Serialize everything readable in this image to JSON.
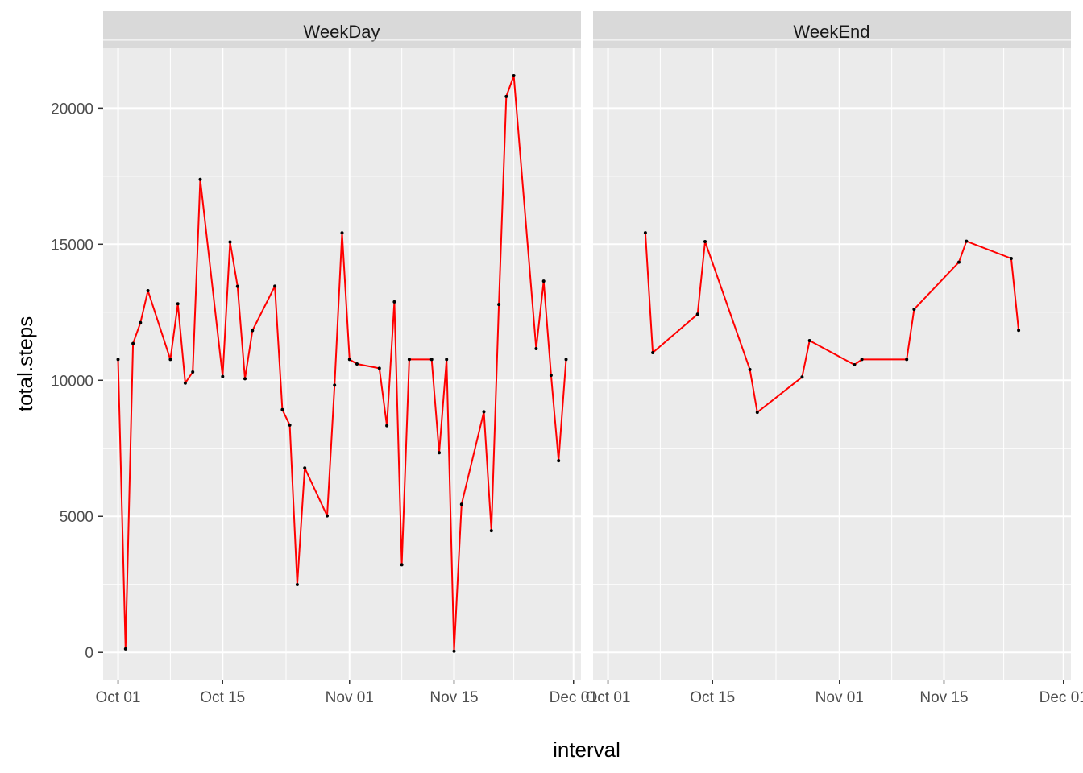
{
  "chart_data": {
    "type": "line",
    "xlabel": "interval",
    "ylabel": "total.steps",
    "x_ticks": [
      "Oct 01",
      "Oct 15",
      "Nov 01",
      "Nov 15",
      "Dec 01"
    ],
    "y_ticks": [
      "0",
      "5000",
      "10000",
      "15000",
      "20000"
    ],
    "ylim": [
      -1000,
      22200
    ],
    "grid": true,
    "line_color": "#ff0000",
    "point_color": "#000000",
    "panel_bg": "#ebebeb",
    "strip_bg": "#d9d9d9",
    "panels": [
      {
        "label": "WeekDay",
        "x": [
          "2012-10-01",
          "2012-10-02",
          "2012-10-03",
          "2012-10-04",
          "2012-10-05",
          "2012-10-08",
          "2012-10-09",
          "2012-10-10",
          "2012-10-11",
          "2012-10-12",
          "2012-10-15",
          "2012-10-16",
          "2012-10-17",
          "2012-10-18",
          "2012-10-19",
          "2012-10-22",
          "2012-10-23",
          "2012-10-24",
          "2012-10-25",
          "2012-10-26",
          "2012-10-29",
          "2012-10-30",
          "2012-10-31",
          "2012-11-01",
          "2012-11-02",
          "2012-11-05",
          "2012-11-06",
          "2012-11-07",
          "2012-11-08",
          "2012-11-09",
          "2012-11-12",
          "2012-11-13",
          "2012-11-14",
          "2012-11-15",
          "2012-11-16",
          "2012-11-19",
          "2012-11-20",
          "2012-11-21",
          "2012-11-22",
          "2012-11-23",
          "2012-11-26",
          "2012-11-27",
          "2012-11-28",
          "2012-11-29",
          "2012-11-30"
        ],
        "y": [
          10766,
          126,
          11352,
          12116,
          13294,
          10766,
          12811,
          9900,
          10304,
          17382,
          10139,
          15084,
          13452,
          10056,
          11829,
          13460,
          8918,
          8355,
          2492,
          6778,
          5018,
          9819,
          15414,
          10766,
          10600,
          10439,
          8334,
          12883,
          3219,
          10766,
          10765,
          7336,
          10766,
          41,
          5441,
          8841,
          4472,
          12787,
          20427,
          21194,
          11162,
          13646,
          10183,
          7047,
          10766
        ]
      },
      {
        "label": "WeekEnd",
        "x": [
          "2012-10-06",
          "2012-10-07",
          "2012-10-13",
          "2012-10-14",
          "2012-10-20",
          "2012-10-21",
          "2012-10-27",
          "2012-10-28",
          "2012-11-03",
          "2012-11-04",
          "2012-11-10",
          "2012-11-11",
          "2012-11-17",
          "2012-11-18",
          "2012-11-24",
          "2012-11-25"
        ],
        "y": [
          15420,
          11015,
          12426,
          15098,
          10395,
          8821,
          10119,
          11458,
          10571,
          10766,
          10766,
          12608,
          14339,
          15110,
          14478,
          11834
        ]
      }
    ]
  }
}
